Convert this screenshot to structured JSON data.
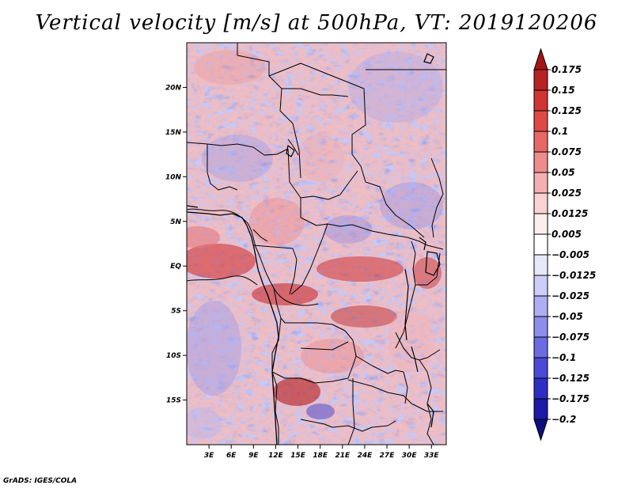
{
  "title": "Vertical velocity [m/s] at 500hPa, VT: 2019120206",
  "credit": "GrADS: IGES/COLA",
  "map": {
    "lon_range": [
      0,
      35
    ],
    "lat_range": [
      -20,
      25
    ],
    "lat_ticks": [
      {
        "value": 20,
        "label": "20N"
      },
      {
        "value": 15,
        "label": "15N"
      },
      {
        "value": 10,
        "label": "10N"
      },
      {
        "value": 5,
        "label": "5N"
      },
      {
        "value": 0,
        "label": "EQ"
      },
      {
        "value": -5,
        "label": "5S"
      },
      {
        "value": -10,
        "label": "10S"
      },
      {
        "value": -15,
        "label": "15S"
      }
    ],
    "lon_ticks": [
      {
        "value": 3,
        "label": "3E"
      },
      {
        "value": 6,
        "label": "6E"
      },
      {
        "value": 9,
        "label": "9E"
      },
      {
        "value": 12,
        "label": "12E"
      },
      {
        "value": 15,
        "label": "15E"
      },
      {
        "value": 18,
        "label": "18E"
      },
      {
        "value": 21,
        "label": "21E"
      },
      {
        "value": 24,
        "label": "24E"
      },
      {
        "value": 27,
        "label": "27E"
      },
      {
        "value": 30,
        "label": "30E"
      },
      {
        "value": 33,
        "label": "33E"
      }
    ]
  },
  "colorbar": {
    "levels": [
      "0.175",
      "0.15",
      "0.125",
      "0.1",
      "0.075",
      "0.05",
      "0.025",
      "0.0125",
      "0.005",
      "−0.005",
      "−0.0125",
      "−0.025",
      "−0.05",
      "−0.075",
      "−0.1",
      "−0.125",
      "−0.175",
      "−0.2"
    ],
    "colors": [
      "#a51515",
      "#b92222",
      "#cf3535",
      "#e04848",
      "#e86868",
      "#ee8c8c",
      "#f4b0b0",
      "#f9d2d2",
      "#fdeeee",
      "#ffffff",
      "#e8e8fb",
      "#cdcdf7",
      "#aeaef2",
      "#8d8deb",
      "#6b6be2",
      "#4a4ad6",
      "#2e2ec4",
      "#1a1aa6",
      "#0e0e80"
    ]
  }
}
